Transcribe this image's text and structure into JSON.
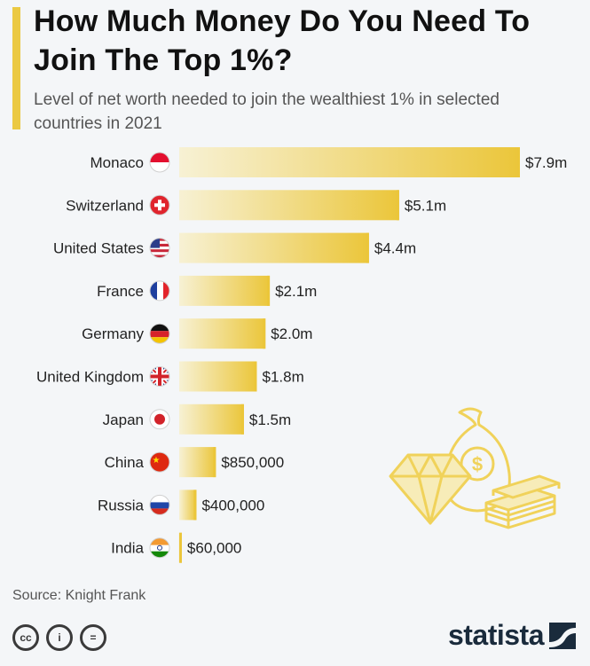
{
  "header": {
    "title": "How Much Money Do You Need To Join The Top 1%?",
    "subtitle": "Level of net worth needed to join the wealthiest 1% in selected countries in 2021"
  },
  "chart_data": {
    "type": "bar",
    "orientation": "horizontal",
    "categories": [
      "Monaco",
      "Switzerland",
      "United States",
      "France",
      "Germany",
      "United Kingdom",
      "Japan",
      "China",
      "Russia",
      "India"
    ],
    "values": [
      7900000,
      5100000,
      4400000,
      2100000,
      2000000,
      1800000,
      1500000,
      850000,
      400000,
      60000
    ],
    "labels": [
      "$7.9m",
      "$5.1m",
      "$4.4m",
      "$2.1m",
      "$2.0m",
      "$1.8m",
      "$1.5m",
      "$850,000",
      "$400,000",
      "$60,000"
    ],
    "flags": [
      "monaco-flag-icon",
      "switzerland-flag-icon",
      "united-states-flag-icon",
      "france-flag-icon",
      "germany-flag-icon",
      "united-kingdom-flag-icon",
      "japan-flag-icon",
      "china-flag-icon",
      "russia-flag-icon",
      "india-flag-icon"
    ],
    "title": "",
    "xlabel": "",
    "ylabel": "",
    "xlim": [
      0,
      7900000
    ],
    "grid": false,
    "colors": {
      "bar_start": "#f7f1d4",
      "bar_end": "#ebc63a"
    }
  },
  "footer": {
    "source": "Source: Knight Frank",
    "license_icons": [
      "cc-icon",
      "by-icon",
      "nd-icon"
    ],
    "license_glyphs": [
      "cc",
      "i",
      "="
    ],
    "logo": "statista"
  },
  "colors": {
    "accent": "#ebc942",
    "background": "#f4f6f8",
    "logo": "#1a2b3c"
  }
}
